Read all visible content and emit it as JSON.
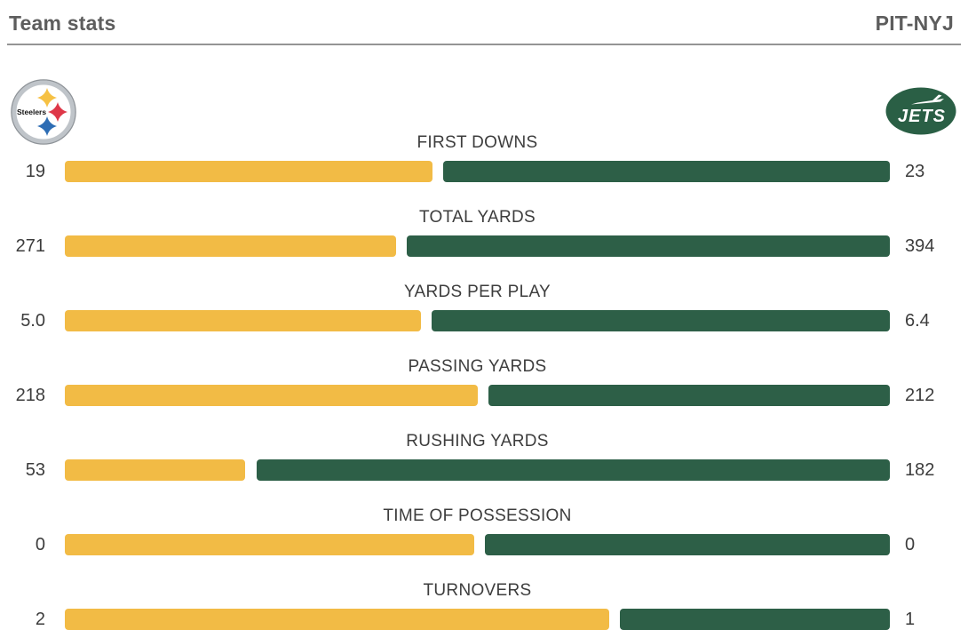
{
  "header": {
    "title": "Team stats",
    "matchup": "PIT-NYJ"
  },
  "teams": {
    "left": {
      "abbr": "PIT",
      "logo_text": "Steelers"
    },
    "right": {
      "abbr": "NYJ",
      "logo_text": "JETS"
    }
  },
  "colors": {
    "left_bar": "#F2BB45",
    "right_bar": "#2D5F47",
    "header_text": "#5d5d5d",
    "label_text": "#3d3d3d",
    "value_text": "#3c3c3c",
    "divider": "#949494",
    "steelers_gold": "#F6C144",
    "steelers_red": "#DE3748",
    "steelers_blue": "#2E6DB4",
    "jets_green": "#2A5F45"
  },
  "chart_data": {
    "type": "bar",
    "subtype": "paired-horizontal-team-comparison",
    "title": "Team stats",
    "matchup": "PIT-NYJ",
    "legend_position": "none",
    "grid": false,
    "categories": [
      "FIRST DOWNS",
      "TOTAL YARDS",
      "YARDS PER PLAY",
      "PASSING YARDS",
      "RUSHING YARDS",
      "TIME OF POSSESSION",
      "TURNOVERS"
    ],
    "series": [
      {
        "name": "PIT",
        "color": "#F2BB45",
        "values": [
          "19",
          "271",
          "5.0",
          "218",
          "53",
          "0",
          "2"
        ]
      },
      {
        "name": "NYJ",
        "color": "#2D5F47",
        "values": [
          "23",
          "394",
          "6.4",
          "212",
          "182",
          "0",
          "1"
        ]
      }
    ],
    "zero_value_split": 0.503
  }
}
